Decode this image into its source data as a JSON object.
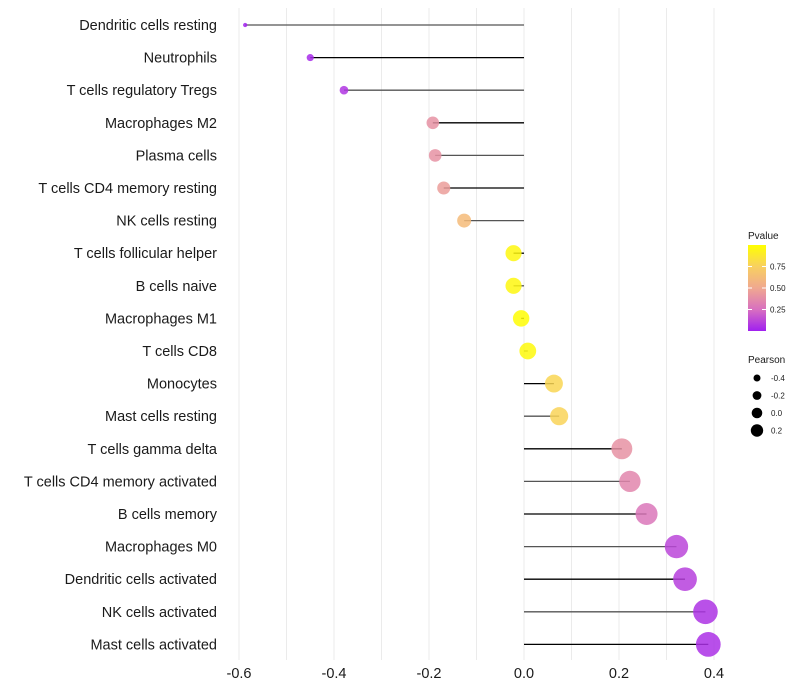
{
  "chart_data": {
    "type": "lollipop",
    "title": "",
    "xlabel": "",
    "ylabel": "",
    "xlim": [
      -0.62,
      0.42
    ],
    "x_ticks": [
      -0.6,
      -0.4,
      -0.2,
      0.0,
      0.2,
      0.4
    ],
    "x_tick_labels": [
      "-0.6",
      "-0.4",
      "-0.2",
      "0.0",
      "0.2",
      "0.4"
    ],
    "grid": true,
    "categories": [
      "Dendritic cells resting",
      "Neutrophils",
      "T cells regulatory  Tregs ",
      "Macrophages M2",
      "Plasma cells",
      "T cells CD4 memory resting",
      "NK cells resting",
      "T cells follicular helper",
      "B cells naive",
      "Macrophages M1",
      "T cells CD8",
      "Monocytes",
      "Mast cells resting",
      "T cells gamma delta",
      "T cells CD4 memory activated",
      "B cells memory",
      "Macrophages M0",
      "Dendritic cells activated",
      "NK cells activated",
      "Mast cells activated"
    ],
    "pearson": [
      -0.587,
      -0.45,
      -0.379,
      -0.192,
      -0.187,
      -0.169,
      -0.126,
      -0.022,
      -0.022,
      -0.006,
      0.008,
      0.063,
      0.074,
      0.206,
      0.223,
      0.258,
      0.321,
      0.339,
      0.382,
      0.388
    ],
    "pvalue": [
      0.01,
      0.03,
      0.07,
      0.4,
      0.4,
      0.45,
      0.62,
      0.96,
      0.96,
      0.99,
      0.97,
      0.78,
      0.77,
      0.4,
      0.35,
      0.28,
      0.12,
      0.1,
      0.06,
      0.05
    ],
    "legend": {
      "pvalue": {
        "title": "Pvalue",
        "ticks": [
          0.25,
          0.5,
          0.75
        ],
        "tick_labels": [
          "0.25",
          "0.50",
          "0.75"
        ],
        "range": [
          0,
          1
        ],
        "colors": [
          "#A020F0",
          "#D870C0",
          "#F0A890",
          "#F8D060",
          "#FFFF00"
        ],
        "placement": "right"
      },
      "pearson": {
        "title": "Pearson",
        "values": [
          -0.4,
          -0.2,
          0.0,
          0.2
        ],
        "labels": [
          "-0.4",
          "-0.2",
          "0.0",
          "0.2"
        ],
        "placement": "right"
      }
    }
  }
}
